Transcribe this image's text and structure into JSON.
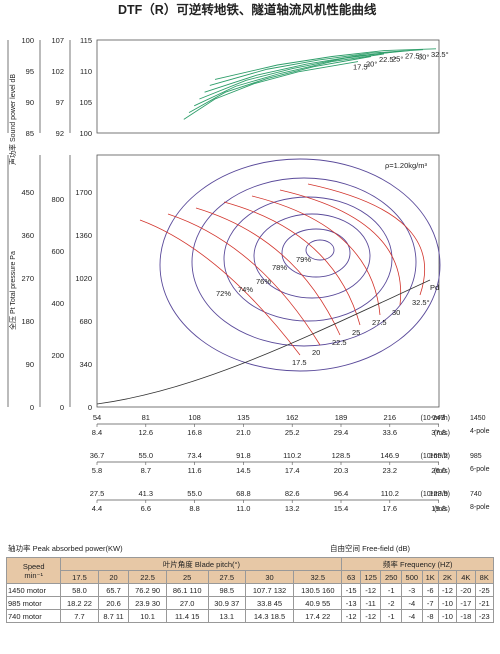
{
  "chart_data": {
    "type": "line",
    "title": "DTF（R）可逆转地铁、隧道轴流风机性能曲线",
    "upper_panel": {
      "ylabel": "声功率 Sound power level dB",
      "y_axes": [
        {
          "ticks": [
            "100",
            "95",
            "90",
            "85"
          ]
        },
        {
          "ticks": [
            "107",
            "102",
            "97",
            "92"
          ]
        },
        {
          "ticks": [
            "115",
            "110",
            "105",
            "100"
          ]
        }
      ],
      "series": [
        {
          "name": "17.5°",
          "values": [
            [
              0.18,
              0.16
            ],
            [
              0.3,
              0.4
            ],
            [
              0.45,
              0.58
            ],
            [
              0.62,
              0.72
            ],
            [
              0.85,
              0.84
            ]
          ]
        },
        {
          "name": "20°",
          "values": [
            [
              0.2,
              0.24
            ],
            [
              0.34,
              0.48
            ],
            [
              0.5,
              0.64
            ],
            [
              0.68,
              0.78
            ],
            [
              0.9,
              0.9
            ]
          ]
        },
        {
          "name": "22.5°",
          "values": [
            [
              0.22,
              0.32
            ],
            [
              0.38,
              0.55
            ],
            [
              0.55,
              0.7
            ],
            [
              0.75,
              0.84
            ],
            [
              0.95,
              0.93
            ]
          ]
        },
        {
          "name": "25°",
          "values": [
            [
              0.24,
              0.4
            ],
            [
              0.42,
              0.62
            ],
            [
              0.6,
              0.76
            ],
            [
              0.8,
              0.88
            ],
            [
              1.0,
              0.96
            ]
          ]
        },
        {
          "name": "27.5°",
          "values": [
            [
              0.26,
              0.48
            ],
            [
              0.46,
              0.68
            ],
            [
              0.65,
              0.81
            ],
            [
              0.85,
              0.91
            ],
            [
              1.05,
              0.97
            ]
          ]
        },
        {
          "name": "30°",
          "values": [
            [
              0.28,
              0.56
            ],
            [
              0.5,
              0.75
            ],
            [
              0.7,
              0.86
            ],
            [
              0.9,
              0.94
            ],
            [
              1.1,
              0.98
            ]
          ]
        },
        {
          "name": "32.5°",
          "values": [
            [
              0.3,
              0.63
            ],
            [
              0.54,
              0.8
            ],
            [
              0.75,
              0.9
            ],
            [
              0.95,
              0.97
            ],
            [
              1.15,
              0.99
            ]
          ]
        }
      ]
    },
    "main_panel": {
      "ylabel": "全压 Pt Total pressure Pa",
      "density_label": "ρ=1.20kg/m³",
      "system_curve_label": "Pd",
      "y_axes": [
        {
          "ticks": [
            "0",
            "90",
            "180",
            "270",
            "360",
            "450"
          ]
        },
        {
          "ticks": [
            "0",
            "200",
            "400",
            "600",
            "800"
          ]
        },
        {
          "ticks": [
            "0",
            "340",
            "680",
            "1020",
            "1360",
            "1700"
          ]
        }
      ],
      "efficiency_labels": [
        "72%",
        "74%",
        "76%",
        "78%",
        "79%"
      ],
      "blade_labels": [
        "17.5",
        "20",
        "22.5",
        "25",
        "27.5",
        "30",
        "32.5°"
      ]
    },
    "x_scales": [
      {
        "speed": "1450",
        "label_a": "4-pole",
        "airflow": [
          "54",
          "81",
          "108",
          "135",
          "162",
          "189",
          "216",
          "243"
        ],
        "airflow_unit": "(10⁴m³/h)",
        "velocity": [
          "8.4",
          "12.6",
          "16.8",
          "21.0",
          "25.2",
          "29.4",
          "33.6",
          "37.8"
        ],
        "velocity_unit": "(m/s)"
      },
      {
        "speed": "985",
        "label_a": "6-pole",
        "airflow": [
          "36.7",
          "55.0",
          "73.4",
          "91.8",
          "110.2",
          "128.5",
          "146.9",
          "165.2"
        ],
        "airflow_unit": "(10⁴m³/h)",
        "velocity": [
          "5.8",
          "8.7",
          "11.6",
          "14.5",
          "17.4",
          "20.3",
          "23.2",
          "26.0"
        ],
        "velocity_unit": "(m/s)"
      },
      {
        "speed": "740",
        "label_a": "8-pole",
        "airflow": [
          "27.5",
          "41.3",
          "55.0",
          "68.8",
          "82.6",
          "96.4",
          "110.2",
          "123.9"
        ],
        "airflow_unit": "(10⁴m³/h)",
        "velocity": [
          "4.4",
          "6.6",
          "8.8",
          "11.0",
          "13.2",
          "15.4",
          "17.6",
          "19.8"
        ],
        "velocity_unit": "(m/s)"
      }
    ],
    "absorbed_power_label": "轴功率 Peak absorbed power(KW)",
    "freefield_label": "自由空间  Free-field  (dB)",
    "table": {
      "header_speed": "Speed\nmin⁻¹",
      "header_blade": "叶片角度 Blade pitch(°)",
      "header_freq": "频率  Frequency (HZ)",
      "blade_cols": [
        "17.5",
        "20",
        "22.5",
        "25",
        "27.5",
        "30",
        "32.5"
      ],
      "freq_cols": [
        "63",
        "125",
        "250",
        "500",
        "1K",
        "2K",
        "4K",
        "8K"
      ],
      "rows": [
        {
          "speed": "1450 motor",
          "power": [
            "58.0",
            "65.7",
            "76.2 90",
            "86.1 110",
            "98.5",
            "107.7 132",
            "130.5 160"
          ],
          "freq": [
            "-15",
            "-12",
            "-1",
            "-3",
            "-6",
            "-12",
            "-20",
            "-25"
          ]
        },
        {
          "speed": "985 motor",
          "power": [
            "18.2 22",
            "20.6",
            "23.9 30",
            "27.0",
            "30.9 37",
            "33.8 45",
            "40.9 55"
          ],
          "freq": [
            "-13",
            "-11",
            "-2",
            "-4",
            "-7",
            "-10",
            "-17",
            "-21"
          ]
        },
        {
          "speed": "740 motor",
          "power": [
            "7.7",
            "8.7 11",
            "10.1",
            "11.4 15",
            "13.1",
            "14.3 18.5",
            "17.4 22"
          ],
          "freq": [
            "-12",
            "-12",
            "-1",
            "-4",
            "-8",
            "-10",
            "-18",
            "-23"
          ]
        }
      ]
    }
  }
}
